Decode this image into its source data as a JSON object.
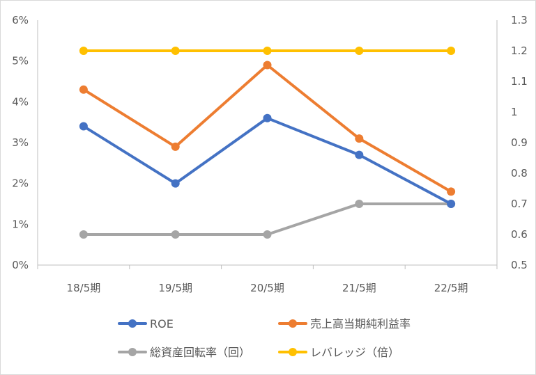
{
  "chart_data": {
    "type": "line",
    "categories": [
      "18/5期",
      "19/5期",
      "20/5期",
      "21/5期",
      "22/5期"
    ],
    "y_left": {
      "min": 0,
      "max": 6,
      "step": 1,
      "ticks": [
        "0%",
        "1%",
        "2%",
        "3%",
        "4%",
        "5%",
        "6%"
      ]
    },
    "y_right": {
      "min": 0.5,
      "max": 1.3,
      "step": 0.1,
      "ticks": [
        "0.5",
        "0.6",
        "0.7",
        "0.8",
        "0.9",
        "1",
        "1.1",
        "1.2",
        "1.3"
      ]
    },
    "grid": false,
    "legend_position": "bottom",
    "series": [
      {
        "name": "ROE",
        "axis": "left",
        "color": "#4472C4",
        "values": [
          3.4,
          2.0,
          3.6,
          2.7,
          1.5
        ]
      },
      {
        "name": "売上高当期純利益率",
        "axis": "left",
        "color": "#ED7D31",
        "values": [
          4.3,
          2.9,
          4.9,
          3.1,
          1.8
        ]
      },
      {
        "name": "総資産回転率（回）",
        "axis": "right",
        "color": "#A5A5A5",
        "values": [
          0.6,
          0.6,
          0.6,
          0.7,
          0.7
        ]
      },
      {
        "name": "レバレッジ（倍）",
        "axis": "right",
        "color": "#FFC000",
        "values": [
          1.2,
          1.2,
          1.2,
          1.2,
          1.2
        ]
      }
    ]
  }
}
